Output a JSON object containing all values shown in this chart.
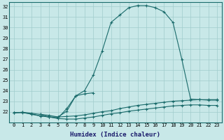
{
  "xlabel": "Humidex (Indice chaleur)",
  "ylabel": "",
  "bg_color": "#c8e8e8",
  "grid_color": "#b0d8d8",
  "line_color": "#1a6b6b",
  "xlim": [
    -0.5,
    23.5
  ],
  "ylim": [
    21.0,
    32.4
  ],
  "yticks": [
    22,
    23,
    24,
    25,
    26,
    27,
    28,
    29,
    30,
    31,
    32
  ],
  "xticks": [
    0,
    1,
    2,
    3,
    4,
    5,
    6,
    7,
    8,
    9,
    10,
    11,
    12,
    13,
    14,
    15,
    16,
    17,
    18,
    19,
    20,
    21,
    22,
    23
  ],
  "curve_main_x": [
    0,
    1,
    2,
    3,
    4,
    5,
    6,
    7,
    8,
    9,
    10,
    11,
    12,
    13,
    14,
    15,
    16,
    17,
    18,
    19,
    20,
    21,
    22,
    23
  ],
  "curve_main_y": [
    21.9,
    21.9,
    21.8,
    21.6,
    21.5,
    21.4,
    22.3,
    23.5,
    24.0,
    25.5,
    27.8,
    30.5,
    31.2,
    31.9,
    32.1,
    32.1,
    31.9,
    31.5,
    30.5,
    27.0,
    23.2,
    23.15,
    23.1,
    23.1
  ],
  "curve_med_x": [
    0,
    1,
    2,
    3,
    4,
    5,
    6,
    7,
    8,
    9,
    10,
    11,
    12,
    13,
    14,
    15,
    16,
    17,
    18,
    19,
    20,
    21,
    22,
    23
  ],
  "curve_med_y": [
    21.9,
    21.95,
    21.85,
    21.75,
    21.65,
    21.5,
    21.55,
    21.6,
    21.7,
    21.85,
    22.0,
    22.1,
    22.3,
    22.45,
    22.6,
    22.7,
    22.8,
    22.9,
    23.0,
    23.05,
    23.1,
    23.15,
    23.15,
    23.15
  ],
  "curve_flat_x": [
    0,
    1,
    2,
    3,
    4,
    5,
    6,
    7,
    8,
    9,
    10,
    11,
    12,
    13,
    14,
    15,
    16,
    17,
    18,
    19,
    20,
    21,
    22,
    23
  ],
  "curve_flat_y": [
    21.9,
    21.95,
    21.75,
    21.6,
    21.5,
    21.35,
    21.3,
    21.3,
    21.4,
    21.5,
    21.65,
    21.8,
    21.9,
    22.05,
    22.15,
    22.25,
    22.35,
    22.45,
    22.55,
    22.6,
    22.65,
    22.65,
    22.6,
    22.6
  ],
  "curve_bump_x": [
    3,
    4,
    5,
    6,
    7,
    8,
    9
  ],
  "curve_bump_y": [
    21.75,
    21.5,
    21.5,
    22.05,
    23.5,
    23.7,
    23.8
  ]
}
